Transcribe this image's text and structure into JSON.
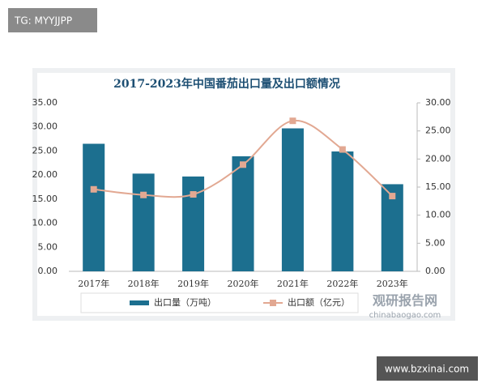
{
  "chart_data": {
    "type": "bar-line",
    "title": "2017-2023年中国番茄出口量及出口额情况",
    "categories": [
      "2017年",
      "2018年",
      "2019年",
      "2020年",
      "2021年",
      "2022年",
      "2023年"
    ],
    "series": [
      {
        "name": "出口量（万吨）",
        "type": "bar",
        "color": "#1c6f8f",
        "values": [
          26.5,
          20.3,
          19.7,
          23.9,
          29.7,
          24.9,
          18.1
        ]
      },
      {
        "name": "出口额（亿元）",
        "type": "line",
        "axis": "y2",
        "color": "#e2a892",
        "values": [
          14.6,
          13.6,
          13.7,
          19.0,
          26.8,
          21.7,
          13.4
        ]
      }
    ],
    "ylim": [
      0,
      35
    ],
    "yticks": [
      {
        "value": 0,
        "label": "0.00"
      },
      {
        "value": 5,
        "label": "5.00"
      },
      {
        "value": 10,
        "label": "10.00"
      },
      {
        "value": 15,
        "label": "15.00"
      },
      {
        "value": 20,
        "label": "20.00"
      },
      {
        "value": 25,
        "label": "25.00"
      },
      {
        "value": 30,
        "label": "30.00"
      },
      {
        "value": 35,
        "label": "35.00"
      }
    ],
    "y2lim": [
      0,
      30
    ],
    "y2ticks": [
      {
        "value": 0,
        "label": "0.00"
      },
      {
        "value": 5,
        "label": "5.00"
      },
      {
        "value": 10,
        "label": "10.00"
      },
      {
        "value": 15,
        "label": "15.00"
      },
      {
        "value": 20,
        "label": "20.00"
      },
      {
        "value": 25,
        "label": "25.00"
      },
      {
        "value": 30,
        "label": "30.00"
      }
    ],
    "grid": false
  },
  "watermark": "TG: MYYJJPP",
  "logo": {
    "name": "观研报告网",
    "site": "chinabaogao.com"
  },
  "footer": "www.bzxinai.com"
}
